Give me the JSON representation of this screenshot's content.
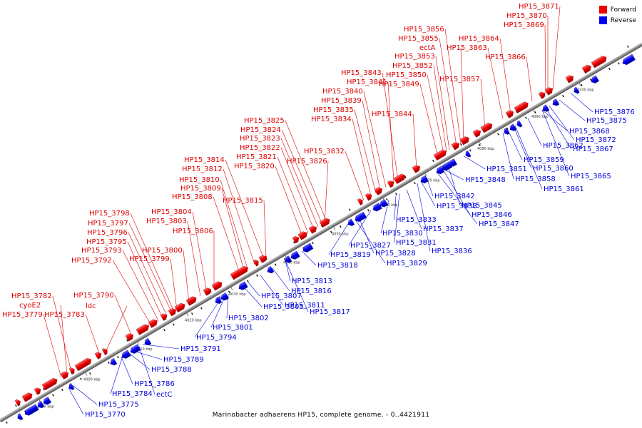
{
  "legend": {
    "forward_label": "Forward",
    "reverse_label": "Reverse",
    "forward_color": "#ee0000",
    "reverse_color": "#0000ee"
  },
  "caption": "Marinobacter adhaerens HP15, complete genome. - 0..4421911",
  "ticks": [
    "3990 kbp",
    "4000 kbp",
    "4010 kbp",
    "4020 kbp",
    "4030 kbp",
    "4040 kbp",
    "4050 kbp",
    "4060 kbp",
    "4070 kbp",
    "4080 kbp",
    "4090 kbp",
    "4100 kbp"
  ],
  "forward_labels": [
    "HP15_3871",
    "HP15_3870",
    "HP15_3869",
    "HP15_3856",
    "HP15_3855",
    "ectA",
    "HP15_3864",
    "HP15_3863",
    "HP15_3853",
    "HP15_3866",
    "HP15_3852",
    "HP15_3843",
    "HP15_3850",
    "HP15_3841",
    "HP15_3849",
    "HP15_3857",
    "HP15_3840",
    "HP15_3839",
    "HP15_3835",
    "HP15_3844",
    "HP15_3834",
    "HP15_3825",
    "HP15_3824",
    "HP15_3823",
    "HP15_3822",
    "HP15_3832",
    "HP15_3821",
    "HP15_3814",
    "HP15_3820",
    "HP15_3826",
    "HP15_3812",
    "HP15_3810",
    "HP15_3809",
    "HP15_3808",
    "HP15_3815",
    "HP15_3798",
    "HP15_3804",
    "HP15_3797",
    "HP15_3803",
    "HP15_3796",
    "HP15_3806",
    "HP15_3795",
    "HP15_3793",
    "HP15_3800",
    "HP15_3792",
    "HP15_3799",
    "HP15_3782",
    "HP15_3790",
    "cyoE2",
    "ldc",
    "HP15_3779",
    "HP15_3783"
  ],
  "reverse_labels": [
    "HP15_3876",
    "HP15_3875",
    "HP15_3868",
    "HP15_3872",
    "HP15_3862",
    "HP15_3867",
    "HP15_3859",
    "HP15_3851",
    "HP15_3860",
    "HP15_3848",
    "HP15_3858",
    "HP15_3865",
    "HP15_3861",
    "HP15_3842",
    "HP15_3838",
    "HP15_3845",
    "HP15_3846",
    "HP15_3847",
    "HP15_3833",
    "HP15_3837",
    "HP15_3830",
    "HP15_3831",
    "HP15_3827",
    "HP15_3836",
    "HP15_3819",
    "HP15_3828",
    "HP15_3829",
    "HP15_3818",
    "HP15_3813",
    "HP15_3816",
    "HP15_3807",
    "HP15_3805",
    "HP15_3811",
    "HP15_3817",
    "HP15_3802",
    "HP15_3801",
    "HP15_3794",
    "HP15_3791",
    "HP15_3789",
    "HP15_3788",
    "HP15_3786",
    "HP15_3784",
    "ectC",
    "HP15_3775",
    "HP15_3770"
  ]
}
